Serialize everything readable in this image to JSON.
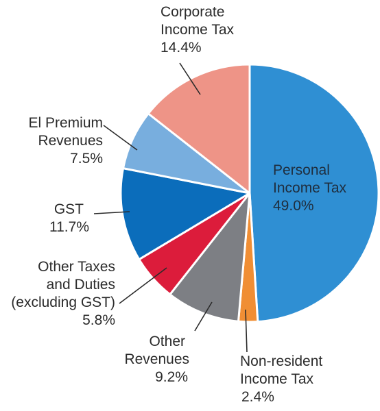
{
  "chart_data": {
    "type": "pie",
    "title": "",
    "slices": [
      {
        "lines": [
          "Personal",
          "Income Tax"
        ],
        "value": 49.0,
        "value_label": "49.0%",
        "color": "#2f8fd3"
      },
      {
        "lines": [
          "Non-resident",
          "Income Tax"
        ],
        "value": 2.4,
        "value_label": "2.4%",
        "color": "#f08e34"
      },
      {
        "lines": [
          "Other",
          "Revenues"
        ],
        "value": 9.2,
        "value_label": "9.2%",
        "color": "#7d7f84"
      },
      {
        "lines": [
          "Other Taxes",
          "and Duties",
          "(excluding GST)"
        ],
        "value": 5.8,
        "value_label": "5.8%",
        "color": "#dc1c3b"
      },
      {
        "lines": [
          "GST"
        ],
        "value": 11.7,
        "value_label": "11.7%",
        "color": "#0b6dbb"
      },
      {
        "lines": [
          "El Premium",
          "Revenues"
        ],
        "value": 7.5,
        "value_label": "7.5%",
        "color": "#78aede"
      },
      {
        "lines": [
          "Corporate",
          "Income Tax"
        ],
        "value": 14.4,
        "value_label": "14.4%",
        "color": "#ee9487"
      }
    ]
  }
}
